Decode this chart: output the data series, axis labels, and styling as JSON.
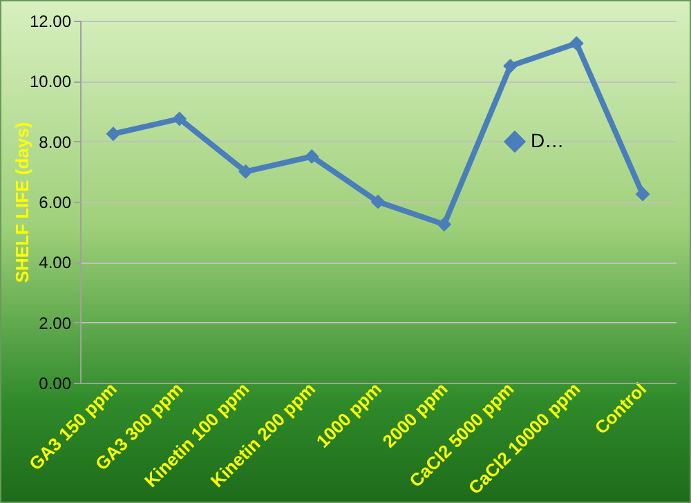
{
  "chart_data": {
    "type": "line",
    "ylabel": "SHELF LIFE (days)",
    "categories": [
      "GA3 150 ppm",
      "GA3 300 ppm",
      "Kinetin 100 ppm",
      "Kinetin 200 ppm",
      "1000 ppm",
      "2000 ppm",
      "CaCl2 5000 ppm",
      "CaCl2 10000 ppm",
      "Control"
    ],
    "series": [
      {
        "name": "D…",
        "color": "#4a7ebb",
        "values": [
          8.25,
          8.75,
          7.0,
          7.5,
          6.0,
          5.25,
          10.5,
          11.25,
          6.25
        ]
      }
    ],
    "ylim": [
      0,
      12
    ],
    "yticks": [
      {
        "value": 0,
        "label": "0.00"
      },
      {
        "value": 2,
        "label": "2.00"
      },
      {
        "value": 4,
        "label": "4.00"
      },
      {
        "value": 6,
        "label": "6.00"
      },
      {
        "value": 8,
        "label": "8.00"
      },
      {
        "value": 10,
        "label": "10.00"
      },
      {
        "value": 12,
        "label": "12.00"
      }
    ],
    "grid": true,
    "legend": "top right",
    "marker": "diamond",
    "line_style": "solid"
  }
}
